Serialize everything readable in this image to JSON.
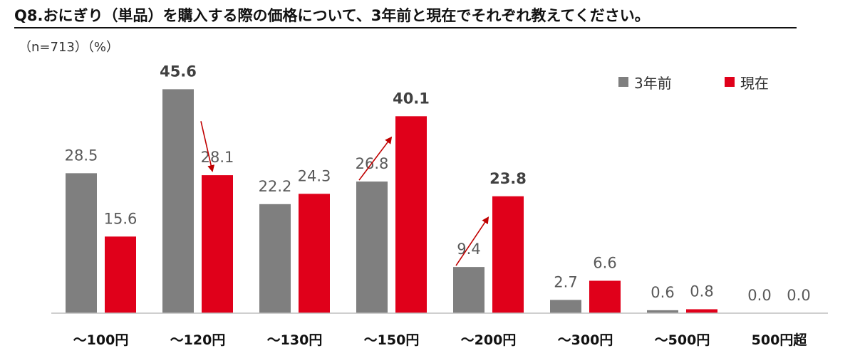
{
  "title": "Q8.おにぎり（単品）を購入する際の価格について、3年前と現在でそれぞれ教えてください。",
  "subtitle": "（n=713）（%）",
  "colors": {
    "prev": "#7f7f7f",
    "now": "#e0001a",
    "axis": "#bfbfbf",
    "arrow": "#c00000"
  },
  "chart_data": {
    "type": "bar",
    "categories": [
      "〜100円",
      "〜120円",
      "〜130円",
      "〜150円",
      "〜200円",
      "〜300円",
      "〜500円",
      "500円超"
    ],
    "series": [
      {
        "name": "3年前",
        "values": [
          28.5,
          45.6,
          22.2,
          26.8,
          9.4,
          2.7,
          0.6,
          0.0
        ],
        "labels": [
          "28.5",
          "45.6",
          "22.2",
          "26.8",
          "9.4",
          "2.7",
          "0.6",
          "0.0"
        ]
      },
      {
        "name": "現在",
        "values": [
          15.6,
          28.1,
          24.3,
          40.1,
          23.8,
          6.6,
          0.8,
          0.0
        ],
        "labels": [
          "15.6",
          "28.1",
          "24.3",
          "40.1",
          "23.8",
          "6.6",
          "0.8",
          "0.0"
        ]
      }
    ],
    "bold_labels": [
      "45.6",
      "40.1",
      "23.8"
    ],
    "ylim": [
      0,
      50
    ],
    "legend_position": "top-right",
    "arrows": [
      {
        "category": "〜120円",
        "direction": "down"
      },
      {
        "category": "〜150円",
        "direction": "up"
      },
      {
        "category": "〜200円",
        "direction": "up"
      }
    ]
  }
}
